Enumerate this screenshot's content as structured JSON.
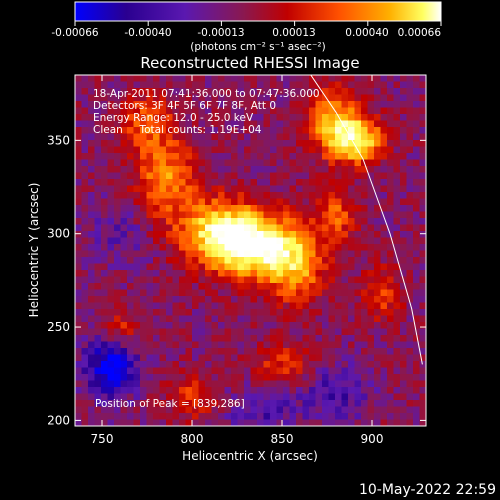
{
  "chart_data": {
    "type": "heatmap",
    "title": "Reconstructed RHESSI Image",
    "xlabel": "Heliocentric X (arcsec)",
    "ylabel": "Heliocentric Y (arcsec)",
    "xlim": [
      735,
      930
    ],
    "ylim": [
      197,
      385
    ],
    "x_ticks": [
      750,
      800,
      850,
      900
    ],
    "y_ticks": [
      200,
      250,
      300,
      350
    ],
    "colorbar": {
      "ticks": [
        "-0.00066",
        "-0.00040",
        "-0.00013",
        "0.00013",
        "0.00040",
        "0.00066"
      ],
      "range": [
        -0.00066,
        0.00066
      ],
      "unit_label": "(photons cm⁻² s⁻¹ asec⁻²)",
      "colormap": [
        "#0000ff",
        "#2a0090",
        "#5a18b0",
        "#8a1850",
        "#c00000",
        "#ff5000",
        "#ffb000",
        "#ffff60",
        "#ffffff"
      ]
    },
    "annotations": [
      "18-Apr-2011 07:41:36.000 to 07:47:36.000",
      "Detectors: 3F 4F 5F 6F 7F 8F, Att 0",
      "Energy Range: 12.0 - 25.0 keV",
      "Clean     Total counts: 1.19E+04"
    ],
    "peak_label": "Position of Peak = [839,286]",
    "peak": {
      "x": 839,
      "y": 286
    },
    "features": [
      {
        "x": 835,
        "y": 293,
        "value": 0.00066,
        "sx": 18,
        "sy": 12
      },
      {
        "x": 815,
        "y": 302,
        "value": 0.0005,
        "sx": 16,
        "sy": 12
      },
      {
        "x": 892,
        "y": 350,
        "value": 0.00058,
        "sx": 10,
        "sy": 9
      },
      {
        "x": 878,
        "y": 360,
        "value": 0.00045,
        "sx": 10,
        "sy": 12
      },
      {
        "x": 785,
        "y": 330,
        "value": 0.00038,
        "sx": 12,
        "sy": 15
      },
      {
        "x": 775,
        "y": 360,
        "value": 0.0003,
        "sx": 10,
        "sy": 10
      },
      {
        "x": 858,
        "y": 282,
        "value": 0.00035,
        "sx": 12,
        "sy": 14
      },
      {
        "x": 880,
        "y": 310,
        "value": 0.00028,
        "sx": 8,
        "sy": 10
      },
      {
        "x": 760,
        "y": 248,
        "value": 0.00025,
        "sx": 8,
        "sy": 8
      },
      {
        "x": 905,
        "y": 268,
        "value": 0.00025,
        "sx": 8,
        "sy": 10
      },
      {
        "x": 800,
        "y": 212,
        "value": 0.00022,
        "sx": 10,
        "sy": 8
      },
      {
        "x": 850,
        "y": 230,
        "value": 0.0002,
        "sx": 12,
        "sy": 8
      },
      {
        "x": 755,
        "y": 230,
        "value": -0.0006,
        "sx": 10,
        "sy": 12
      },
      {
        "x": 840,
        "y": 205,
        "value": -0.00025,
        "sx": 15,
        "sy": 10
      },
      {
        "x": 760,
        "y": 300,
        "value": -0.0002,
        "sx": 12,
        "sy": 12
      },
      {
        "x": 880,
        "y": 215,
        "value": -0.0003,
        "sx": 12,
        "sy": 10
      }
    ],
    "limb": [
      [
        866,
        385
      ],
      [
        880,
        365
      ],
      [
        895,
        340
      ],
      [
        910,
        300
      ],
      [
        922,
        260
      ],
      [
        928,
        230
      ]
    ]
  },
  "footer": {
    "timestamp": "10-May-2022 22:59"
  }
}
